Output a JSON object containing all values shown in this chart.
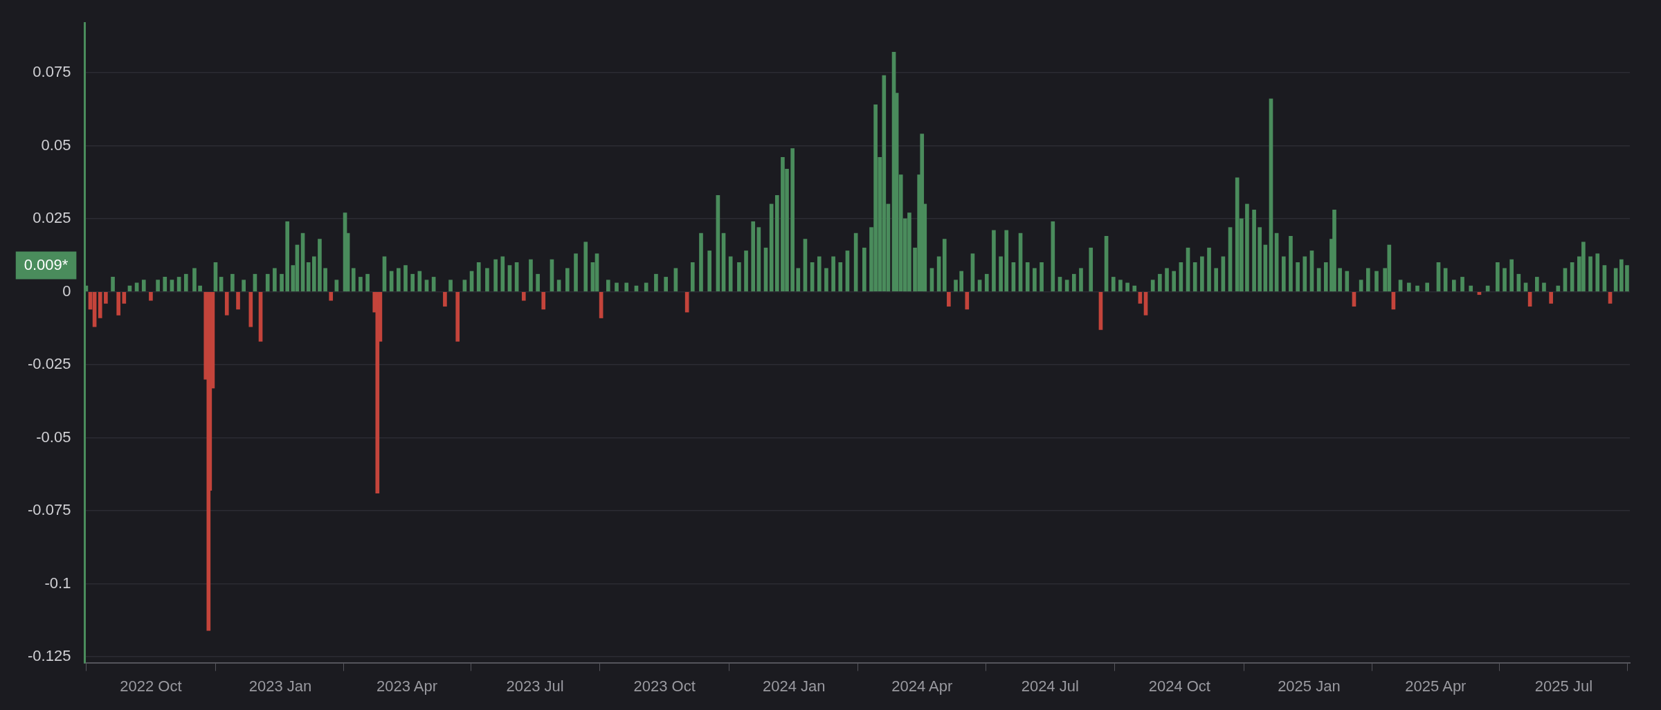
{
  "chart_data": {
    "type": "bar",
    "grid": "y",
    "xlim": [
      "2022-08-15",
      "2025-08-17"
    ],
    "xticks": [
      {
        "value": "2022-10-01",
        "label": "2022 Oct"
      },
      {
        "value": "2023-01-01",
        "label": "2023 Jan"
      },
      {
        "value": "2023-04-01",
        "label": "2023 Apr"
      },
      {
        "value": "2023-07-01",
        "label": "2023 Jul"
      },
      {
        "value": "2023-10-01",
        "label": "2023 Oct"
      },
      {
        "value": "2024-01-01",
        "label": "2024 Jan"
      },
      {
        "value": "2024-04-01",
        "label": "2024 Apr"
      },
      {
        "value": "2024-07-01",
        "label": "2024 Jul"
      },
      {
        "value": "2024-10-01",
        "label": "2024 Oct"
      },
      {
        "value": "2025-01-01",
        "label": "2025 Jan"
      },
      {
        "value": "2025-04-01",
        "label": "2025 Apr"
      },
      {
        "value": "2025-07-01",
        "label": "2025 Jul"
      }
    ],
    "ylim": [
      -0.127,
      0.092
    ],
    "yticks": [
      -0.125,
      -0.1,
      -0.075,
      -0.05,
      -0.025,
      0,
      0.025,
      0.05,
      0.075
    ],
    "annotations": [
      "0.009*"
    ],
    "series": [
      {
        "color": "#4a8c5c",
        "x": [
          "2022-08-16",
          "2022-09-04",
          "2022-09-16",
          "2022-09-21",
          "2022-09-26",
          "2022-10-06",
          "2022-10-11",
          "2022-10-16",
          "2022-10-21",
          "2022-10-26",
          "2022-11-01",
          "2022-11-05",
          "2022-11-16",
          "2022-11-20",
          "2022-11-28",
          "2022-12-06",
          "2022-12-14",
          "2022-12-23",
          "2022-12-28",
          "2023-01-02",
          "2023-01-06",
          "2023-01-10",
          "2023-01-13",
          "2023-01-17",
          "2023-01-21",
          "2023-01-25",
          "2023-01-29",
          "2023-02-02",
          "2023-02-10",
          "2023-02-16",
          "2023-02-18",
          "2023-02-22",
          "2023-02-27",
          "2023-03-04",
          "2023-03-16",
          "2023-03-21",
          "2023-03-26",
          "2023-03-31",
          "2023-04-05",
          "2023-04-10",
          "2023-04-15",
          "2023-04-20",
          "2023-05-02",
          "2023-05-12",
          "2023-05-17",
          "2023-05-22",
          "2023-05-28",
          "2023-06-03",
          "2023-06-08",
          "2023-06-13",
          "2023-06-18",
          "2023-06-28",
          "2023-07-03",
          "2023-07-13",
          "2023-07-18",
          "2023-07-24",
          "2023-07-30",
          "2023-08-06",
          "2023-08-11",
          "2023-08-14",
          "2023-08-22",
          "2023-08-28",
          "2023-09-04",
          "2023-09-11",
          "2023-09-18",
          "2023-09-25",
          "2023-10-02",
          "2023-10-09",
          "2023-10-21",
          "2023-10-27",
          "2023-11-02",
          "2023-11-08",
          "2023-11-12",
          "2023-11-17",
          "2023-11-23",
          "2023-11-28",
          "2023-12-03",
          "2023-12-07",
          "2023-12-12",
          "2023-12-16",
          "2023-12-20",
          "2023-12-24",
          "2023-12-27",
          "2023-12-31",
          "2024-01-04",
          "2024-01-09",
          "2024-01-14",
          "2024-01-19",
          "2024-01-24",
          "2024-01-29",
          "2024-02-03",
          "2024-02-08",
          "2024-02-14",
          "2024-02-20",
          "2024-02-25",
          "2024-02-28",
          "2024-03-02",
          "2024-03-05",
          "2024-03-08",
          "2024-03-12",
          "2024-03-14",
          "2024-03-17",
          "2024-03-20",
          "2024-03-23",
          "2024-03-27",
          "2024-03-30",
          "2024-04-01",
          "2024-04-03",
          "2024-04-08",
          "2024-04-13",
          "2024-04-17",
          "2024-04-25",
          "2024-04-29",
          "2024-05-07",
          "2024-05-12",
          "2024-05-17",
          "2024-05-22",
          "2024-05-27",
          "2024-05-31",
          "2024-06-05",
          "2024-06-10",
          "2024-06-15",
          "2024-06-20",
          "2024-06-25",
          "2024-07-03",
          "2024-07-08",
          "2024-07-13",
          "2024-07-18",
          "2024-07-23",
          "2024-07-30",
          "2024-08-10",
          "2024-08-15",
          "2024-08-20",
          "2024-08-25",
          "2024-08-30",
          "2024-09-12",
          "2024-09-17",
          "2024-09-22",
          "2024-09-27",
          "2024-10-02",
          "2024-10-07",
          "2024-10-12",
          "2024-10-17",
          "2024-10-22",
          "2024-10-27",
          "2024-11-01",
          "2024-11-06",
          "2024-11-11",
          "2024-11-14",
          "2024-11-18",
          "2024-11-23",
          "2024-11-27",
          "2024-12-01",
          "2024-12-05",
          "2024-12-09",
          "2024-12-14",
          "2024-12-19",
          "2024-12-24",
          "2024-12-29",
          "2025-01-03",
          "2025-01-08",
          "2025-01-13",
          "2025-01-17",
          "2025-01-19",
          "2025-01-23",
          "2025-01-28",
          "2025-02-07",
          "2025-02-12",
          "2025-02-18",
          "2025-02-24",
          "2025-02-27",
          "2025-03-07",
          "2025-03-13",
          "2025-03-19",
          "2025-03-26",
          "2025-04-03",
          "2025-04-08",
          "2025-04-14",
          "2025-04-20",
          "2025-04-26",
          "2025-05-08",
          "2025-05-15",
          "2025-05-20",
          "2025-05-25",
          "2025-05-30",
          "2025-06-04",
          "2025-06-12",
          "2025-06-17",
          "2025-06-27",
          "2025-07-02",
          "2025-07-07",
          "2025-07-12",
          "2025-07-15",
          "2025-07-20",
          "2025-07-25",
          "2025-07-30",
          "2025-08-07",
          "2025-08-11",
          "2025-08-15"
        ],
        "values": [
          0.002,
          0.005,
          0.002,
          0.003,
          0.004,
          0.004,
          0.005,
          0.004,
          0.005,
          0.006,
          0.008,
          0.002,
          0.01,
          0.005,
          0.006,
          0.004,
          0.006,
          0.006,
          0.008,
          0.006,
          0.024,
          0.009,
          0.016,
          0.02,
          0.01,
          0.012,
          0.018,
          0.008,
          0.004,
          0.027,
          0.02,
          0.008,
          0.005,
          0.006,
          0.012,
          0.007,
          0.008,
          0.009,
          0.006,
          0.007,
          0.004,
          0.005,
          0.004,
          0.004,
          0.007,
          0.01,
          0.008,
          0.011,
          0.012,
          0.009,
          0.01,
          0.011,
          0.006,
          0.011,
          0.004,
          0.008,
          0.013,
          0.017,
          0.01,
          0.013,
          0.004,
          0.003,
          0.003,
          0.002,
          0.003,
          0.006,
          0.005,
          0.008,
          0.01,
          0.02,
          0.014,
          0.033,
          0.02,
          0.012,
          0.01,
          0.014,
          0.024,
          0.022,
          0.015,
          0.03,
          0.033,
          0.046,
          0.042,
          0.049,
          0.008,
          0.018,
          0.01,
          0.012,
          0.008,
          0.012,
          0.01,
          0.014,
          0.02,
          0.015,
          0.022,
          0.064,
          0.046,
          0.074,
          0.03,
          0.082,
          0.068,
          0.04,
          0.025,
          0.027,
          0.015,
          0.04,
          0.054,
          0.03,
          0.008,
          0.012,
          0.018,
          0.004,
          0.007,
          0.013,
          0.004,
          0.006,
          0.021,
          0.012,
          0.021,
          0.01,
          0.02,
          0.01,
          0.008,
          0.01,
          0.024,
          0.005,
          0.004,
          0.006,
          0.008,
          0.015,
          0.019,
          0.005,
          0.004,
          0.003,
          0.002,
          0.004,
          0.006,
          0.008,
          0.007,
          0.01,
          0.015,
          0.01,
          0.012,
          0.015,
          0.008,
          0.012,
          0.022,
          0.039,
          0.025,
          0.03,
          0.028,
          0.022,
          0.016,
          0.066,
          0.02,
          0.012,
          0.019,
          0.01,
          0.012,
          0.014,
          0.008,
          0.01,
          0.018,
          0.028,
          0.008,
          0.007,
          0.004,
          0.008,
          0.007,
          0.008,
          0.016,
          0.004,
          0.003,
          0.002,
          0.003,
          0.01,
          0.008,
          0.004,
          0.005,
          0.002,
          0.002,
          0.01,
          0.008,
          0.011,
          0.006,
          0.003,
          0.005,
          0.003,
          0.002,
          0.008,
          0.01,
          0.012,
          0.017,
          0.012,
          0.013,
          0.009,
          0.008,
          0.011,
          0.009
        ]
      },
      {
        "color": "#c4443b",
        "x": [
          "2022-08-19",
          "2022-08-22",
          "2022-08-26",
          "2022-08-30",
          "2022-09-08",
          "2022-09-12",
          "2022-10-01",
          "2022-11-09",
          "2022-11-11",
          "2022-11-12",
          "2022-11-14",
          "2022-11-24",
          "2022-12-02",
          "2022-12-11",
          "2022-12-18",
          "2023-02-06",
          "2023-03-09",
          "2023-03-11",
          "2023-03-13",
          "2023-04-28",
          "2023-05-07",
          "2023-06-23",
          "2023-07-07",
          "2023-08-17",
          "2023-10-17",
          "2024-04-20",
          "2024-05-03",
          "2024-08-06",
          "2024-09-03",
          "2024-09-07",
          "2025-02-02",
          "2025-03-02",
          "2025-05-02",
          "2025-06-07",
          "2025-06-22",
          "2025-08-03"
        ],
        "values": [
          -0.006,
          -0.012,
          -0.009,
          -0.004,
          -0.008,
          -0.004,
          -0.003,
          -0.03,
          -0.116,
          -0.068,
          -0.033,
          -0.008,
          -0.006,
          -0.012,
          -0.017,
          -0.003,
          -0.007,
          -0.069,
          -0.017,
          -0.005,
          -0.017,
          -0.003,
          -0.006,
          -0.009,
          -0.007,
          -0.005,
          -0.006,
          -0.013,
          -0.004,
          -0.008,
          -0.005,
          -0.006,
          -0.001,
          -0.005,
          -0.004,
          -0.004
        ]
      }
    ]
  }
}
